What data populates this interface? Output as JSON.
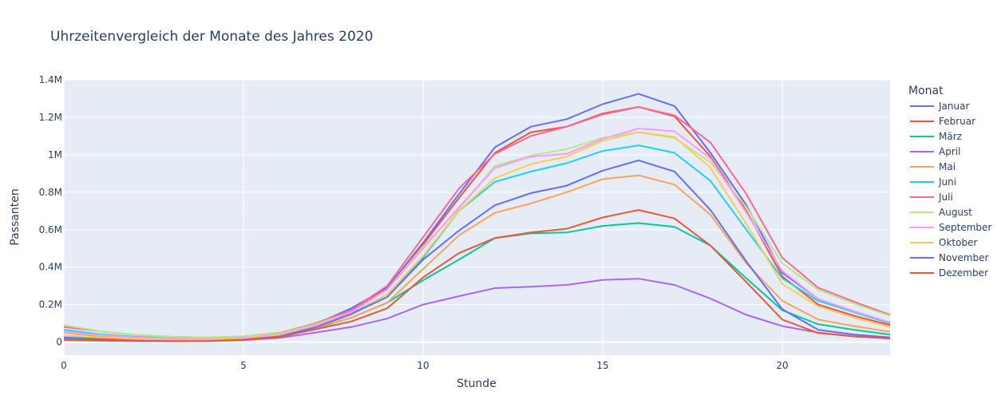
{
  "chart_data": {
    "type": "line",
    "title": "Uhrzeitenvergleich der Monate des Jahres 2020",
    "xlabel": "Stunde",
    "ylabel": "Passanten",
    "xlim": [
      0,
      23
    ],
    "ylim": [
      -70000,
      1400000
    ],
    "xticks": [
      0,
      5,
      10,
      15,
      20
    ],
    "yticks": [
      0,
      200000,
      400000,
      600000,
      800000,
      1000000,
      1200000,
      1400000
    ],
    "ytick_labels": [
      "0",
      "0.2M",
      "0.4M",
      "0.6M",
      "0.8M",
      "1M",
      "1.2M",
      "1.4M"
    ],
    "grid": true,
    "plot_background": "#e5ecf6",
    "legend": {
      "title": "Monat",
      "placement": "right"
    },
    "x": [
      0,
      1,
      2,
      3,
      4,
      5,
      6,
      7,
      8,
      9,
      10,
      11,
      12,
      13,
      14,
      15,
      16,
      17,
      18,
      19,
      20,
      21,
      22,
      23
    ],
    "series": [
      {
        "name": "Januar",
        "color": "#636efa",
        "values": [
          25000,
          18000,
          12000,
          9000,
          10000,
          18000,
          38000,
          95000,
          180000,
          290000,
          530000,
          790000,
          1040000,
          1150000,
          1190000,
          1270000,
          1325000,
          1260000,
          1010000,
          730000,
          370000,
          230000,
          160000,
          100000
        ]
      },
      {
        "name": "Februar",
        "color": "#ef553b",
        "values": [
          20000,
          15000,
          10000,
          8000,
          9000,
          18000,
          36000,
          90000,
          170000,
          280000,
          520000,
          770000,
          1010000,
          1120000,
          1150000,
          1220000,
          1255000,
          1205000,
          990000,
          700000,
          350000,
          200000,
          140000,
          90000
        ]
      },
      {
        "name": "März",
        "color": "#00cc96",
        "values": [
          18000,
          12000,
          8000,
          6000,
          7000,
          14000,
          30000,
          72000,
          130000,
          210000,
          330000,
          440000,
          555000,
          580000,
          585000,
          620000,
          635000,
          615000,
          515000,
          340000,
          170000,
          95000,
          65000,
          40000
        ]
      },
      {
        "name": "April",
        "color": "#ab63fa",
        "values": [
          10000,
          7000,
          5000,
          4000,
          5000,
          10000,
          22000,
          50000,
          80000,
          125000,
          200000,
          245000,
          288000,
          295000,
          305000,
          332000,
          338000,
          305000,
          232000,
          145000,
          85000,
          50000,
          30000,
          18000
        ]
      },
      {
        "name": "Mai",
        "color": "#ffa15a",
        "values": [
          50000,
          30000,
          20000,
          15000,
          14000,
          20000,
          35000,
          75000,
          130000,
          210000,
          390000,
          570000,
          690000,
          740000,
          800000,
          870000,
          890000,
          840000,
          680000,
          420000,
          220000,
          120000,
          85000,
          55000
        ]
      },
      {
        "name": "Juni",
        "color": "#19d3f3",
        "values": [
          65000,
          42000,
          28000,
          20000,
          18000,
          25000,
          42000,
          85000,
          150000,
          255000,
          450000,
          700000,
          855000,
          910000,
          955000,
          1020000,
          1050000,
          1010000,
          860000,
          600000,
          340000,
          220000,
          160000,
          100000
        ]
      },
      {
        "name": "Juli",
        "color": "#ff6692",
        "values": [
          80000,
          58000,
          38000,
          28000,
          24000,
          30000,
          48000,
          100000,
          170000,
          300000,
          560000,
          820000,
          1005000,
          1100000,
          1150000,
          1215000,
          1255000,
          1210000,
          1065000,
          790000,
          450000,
          290000,
          215000,
          145000
        ]
      },
      {
        "name": "August",
        "color": "#b6e880",
        "values": [
          90000,
          58000,
          38000,
          28000,
          24000,
          30000,
          45000,
          95000,
          160000,
          280000,
          510000,
          710000,
          940000,
          995000,
          1030000,
          1090000,
          1120000,
          1090000,
          960000,
          720000,
          420000,
          280000,
          205000,
          140000
        ]
      },
      {
        "name": "September",
        "color": "#ff97ff",
        "values": [
          55000,
          38000,
          25000,
          18000,
          16000,
          22000,
          38000,
          85000,
          160000,
          280000,
          500000,
          720000,
          930000,
          990000,
          1005000,
          1085000,
          1140000,
          1125000,
          980000,
          690000,
          380000,
          230000,
          165000,
          105000
        ]
      },
      {
        "name": "Oktober",
        "color": "#fecb52",
        "values": [
          35000,
          25000,
          17000,
          12000,
          12000,
          18000,
          33000,
          78000,
          145000,
          255000,
          460000,
          700000,
          875000,
          950000,
          990000,
          1075000,
          1120000,
          1095000,
          930000,
          630000,
          310000,
          190000,
          130000,
          80000
        ]
      },
      {
        "name": "November",
        "color": "#636efa",
        "values": [
          15000,
          10000,
          7000,
          5000,
          6000,
          13000,
          30000,
          78000,
          150000,
          240000,
          440000,
          595000,
          730000,
          795000,
          835000,
          915000,
          970000,
          910000,
          705000,
          430000,
          175000,
          65000,
          40000,
          25000
        ]
      },
      {
        "name": "Dezember",
        "color": "#ef553b",
        "values": [
          12000,
          8000,
          6000,
          5000,
          5000,
          12000,
          27000,
          68000,
          110000,
          180000,
          345000,
          475000,
          555000,
          585000,
          605000,
          665000,
          705000,
          660000,
          515000,
          320000,
          120000,
          48000,
          30000,
          20000
        ]
      }
    ]
  }
}
